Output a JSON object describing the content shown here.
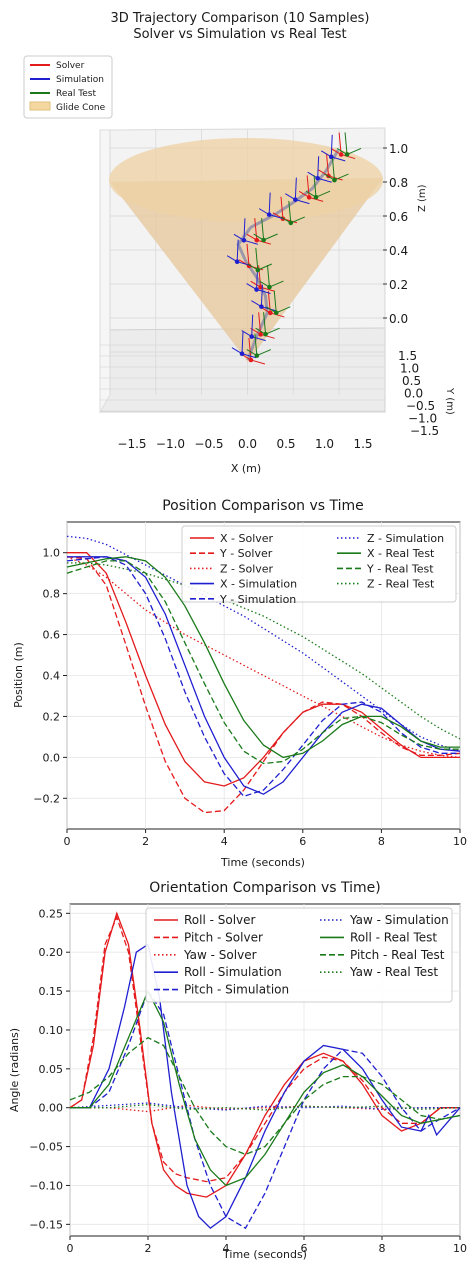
{
  "chart_data": [
    {
      "type": "scatter",
      "title": "3D Trajectory Comparison (10 Samples)",
      "subtitle": "Solver vs Simulation vs Real Test",
      "xlabel": "X (m)",
      "ylabel": "Y (m)",
      "zlabel": "Z (m)",
      "xlim": [
        -1.9,
        1.9
      ],
      "ylim": [
        -1.5,
        1.5
      ],
      "zlim": [
        -0.1,
        1.05
      ],
      "x_ticks": [
        "−1.5",
        "−1.0",
        "−0.5",
        "0.0",
        "0.5",
        "1.0",
        "1.5"
      ],
      "y_ticks": [
        "1.5",
        "1.0",
        "0.5",
        "0.0",
        "−0.5",
        "−1.0",
        "−1.5"
      ],
      "z_ticks": [
        "1.0",
        "0.8",
        "0.6",
        "0.4",
        "0.2",
        "0.0"
      ],
      "legend_position": "top-left",
      "legend": [
        {
          "label": "Solver",
          "color": "#e41a1c",
          "kind": "line"
        },
        {
          "label": "Simulation",
          "color": "#1f1fd0",
          "kind": "line"
        },
        {
          "label": "Real Test",
          "color": "#1a7a1a",
          "kind": "line"
        },
        {
          "label": "Glide Cone",
          "color": "#f5d8a0",
          "kind": "patch"
        }
      ],
      "cone_color": "#e7c79a",
      "path": {
        "x": [
          0.02,
          0.1,
          0.22,
          0.2,
          0.12,
          0.0,
          -0.08,
          0.05,
          0.3,
          0.5,
          0.68,
          0.82,
          0.95
        ],
        "z": [
          0.0,
          0.1,
          0.22,
          0.3,
          0.38,
          0.46,
          0.54,
          0.62,
          0.68,
          0.74,
          0.8,
          0.88,
          0.98
        ]
      },
      "samples": {
        "solver": {
          "x": [
            0.02,
            0.12,
            0.22,
            0.12,
            0.0,
            0.08,
            0.35,
            0.62,
            0.82,
            0.95
          ],
          "z": [
            0.0,
            0.12,
            0.22,
            0.34,
            0.44,
            0.56,
            0.66,
            0.76,
            0.86,
            0.96
          ]
        },
        "simulation": {
          "x": [
            0.0,
            0.1,
            0.2,
            0.15,
            -0.05,
            0.02,
            0.28,
            0.55,
            0.78,
            0.92
          ],
          "z": [
            0.02,
            0.1,
            0.24,
            0.32,
            0.45,
            0.55,
            0.67,
            0.74,
            0.84,
            0.94
          ]
        },
        "real": {
          "x": [
            0.05,
            0.14,
            0.25,
            0.18,
            0.06,
            0.12,
            0.4,
            0.66,
            0.85,
            0.98
          ],
          "z": [
            0.03,
            0.13,
            0.23,
            0.35,
            0.43,
            0.57,
            0.65,
            0.77,
            0.85,
            0.97
          ]
        }
      }
    },
    {
      "type": "line",
      "title": "Position Comparison vs Time",
      "xlabel": "Time (seconds)",
      "ylabel": "Position (m)",
      "xlim": [
        0,
        10
      ],
      "ylim": [
        -0.35,
        1.15
      ],
      "x_ticks": [
        0,
        2,
        4,
        6,
        8,
        10
      ],
      "y_ticks": [
        -0.2,
        0.0,
        0.2,
        0.4,
        0.6,
        0.8,
        1.0
      ],
      "grid": true,
      "legend_position": "top-right",
      "series": [
        {
          "name": "X - Solver",
          "color": "#e41a1c",
          "dash": "solid",
          "x": [
            0,
            0.5,
            1,
            1.5,
            2,
            2.5,
            3,
            3.5,
            4,
            4.5,
            5,
            5.5,
            6,
            6.5,
            7,
            7.5,
            8,
            8.5,
            9,
            9.5,
            10
          ],
          "y": [
            1.0,
            1.0,
            0.9,
            0.66,
            0.4,
            0.16,
            -0.02,
            -0.12,
            -0.14,
            -0.1,
            0.0,
            0.12,
            0.22,
            0.26,
            0.26,
            0.22,
            0.14,
            0.06,
            0.0,
            0.0,
            0.0
          ]
        },
        {
          "name": "Y - Solver",
          "color": "#e41a1c",
          "dash": "dashed",
          "x": [
            0,
            0.5,
            1,
            1.5,
            2,
            2.5,
            3,
            3.5,
            4,
            4.5,
            5,
            5.5,
            6,
            6.5,
            7,
            7.5,
            8,
            8.5,
            9,
            9.5,
            10
          ],
          "y": [
            0.98,
            0.97,
            0.84,
            0.55,
            0.25,
            -0.02,
            -0.2,
            -0.27,
            -0.26,
            -0.16,
            -0.02,
            0.12,
            0.22,
            0.27,
            0.26,
            0.2,
            0.12,
            0.05,
            0.01,
            0.01,
            0.02
          ]
        },
        {
          "name": "Z - Solver",
          "color": "#e41a1c",
          "dash": "dotted",
          "x": [
            0,
            0.5,
            1,
            1.5,
            2,
            2.5,
            3,
            3.5,
            4,
            4.5,
            5,
            5.5,
            6,
            6.5,
            7,
            7.5,
            8,
            8.5,
            9,
            9.5,
            10
          ],
          "y": [
            0.98,
            0.94,
            0.88,
            0.8,
            0.72,
            0.66,
            0.6,
            0.55,
            0.5,
            0.45,
            0.4,
            0.35,
            0.3,
            0.25,
            0.2,
            0.15,
            0.1,
            0.06,
            0.03,
            0.01,
            0.0
          ]
        },
        {
          "name": "X - Simulation",
          "color": "#1f1fd0",
          "dash": "solid",
          "x": [
            0,
            0.5,
            1,
            1.5,
            2,
            2.5,
            3,
            3.5,
            4,
            4.5,
            5,
            5.5,
            6,
            6.5,
            7,
            7.5,
            8,
            8.5,
            9,
            9.5,
            10
          ],
          "y": [
            0.98,
            0.98,
            0.98,
            0.96,
            0.88,
            0.7,
            0.45,
            0.2,
            0.0,
            -0.14,
            -0.18,
            -0.12,
            0.0,
            0.12,
            0.22,
            0.26,
            0.24,
            0.16,
            0.08,
            0.04,
            0.03
          ]
        },
        {
          "name": "Y - Simulation",
          "color": "#1f1fd0",
          "dash": "dashed",
          "x": [
            0,
            0.5,
            1,
            1.5,
            2,
            2.5,
            3,
            3.5,
            4,
            4.5,
            5,
            5.5,
            6,
            6.5,
            7,
            7.5,
            8,
            8.5,
            9,
            9.5,
            10
          ],
          "y": [
            0.96,
            0.97,
            0.98,
            0.94,
            0.8,
            0.58,
            0.32,
            0.1,
            -0.08,
            -0.19,
            -0.16,
            -0.06,
            0.06,
            0.18,
            0.26,
            0.27,
            0.22,
            0.12,
            0.05,
            0.02,
            0.02
          ]
        },
        {
          "name": "Z - Simulation",
          "color": "#1f1fd0",
          "dash": "dotted",
          "x": [
            0,
            0.5,
            1,
            1.5,
            2,
            2.5,
            3,
            3.5,
            4,
            4.5,
            5,
            5.5,
            6,
            6.5,
            7,
            7.5,
            8,
            8.5,
            9,
            9.5,
            10
          ],
          "y": [
            1.08,
            1.07,
            1.04,
            0.99,
            0.94,
            0.89,
            0.84,
            0.79,
            0.74,
            0.69,
            0.63,
            0.57,
            0.51,
            0.44,
            0.37,
            0.3,
            0.23,
            0.16,
            0.1,
            0.06,
            0.03
          ]
        },
        {
          "name": "X - Real Test",
          "color": "#1a7a1a",
          "dash": "solid",
          "x": [
            0,
            0.5,
            1,
            1.5,
            2,
            2.5,
            3,
            3.5,
            4,
            4.5,
            5,
            5.5,
            6,
            6.5,
            7,
            7.5,
            8,
            8.5,
            9,
            9.5,
            10
          ],
          "y": [
            0.93,
            0.95,
            0.97,
            0.98,
            0.96,
            0.88,
            0.74,
            0.56,
            0.36,
            0.18,
            0.06,
            0.0,
            0.02,
            0.08,
            0.16,
            0.2,
            0.2,
            0.15,
            0.08,
            0.05,
            0.05
          ]
        },
        {
          "name": "Y - Real Test",
          "color": "#1a7a1a",
          "dash": "dashed",
          "x": [
            0,
            0.5,
            1,
            1.5,
            2,
            2.5,
            3,
            3.5,
            4,
            4.5,
            5,
            5.5,
            6,
            6.5,
            7,
            7.5,
            8,
            8.5,
            9,
            9.5,
            10
          ],
          "y": [
            0.9,
            0.93,
            0.96,
            0.96,
            0.9,
            0.76,
            0.56,
            0.36,
            0.17,
            0.03,
            -0.03,
            -0.02,
            0.04,
            0.12,
            0.19,
            0.2,
            0.17,
            0.11,
            0.06,
            0.04,
            0.04
          ]
        },
        {
          "name": "Z - Real Test",
          "color": "#1a7a1a",
          "dash": "dotted",
          "x": [
            0,
            0.5,
            1,
            1.5,
            2,
            2.5,
            3,
            3.5,
            4,
            4.5,
            5,
            5.5,
            6,
            6.5,
            7,
            7.5,
            8,
            8.5,
            9,
            9.5,
            10
          ],
          "y": [
            0.95,
            0.95,
            0.94,
            0.92,
            0.9,
            0.87,
            0.84,
            0.81,
            0.77,
            0.73,
            0.69,
            0.64,
            0.59,
            0.53,
            0.47,
            0.41,
            0.34,
            0.27,
            0.2,
            0.14,
            0.09
          ]
        }
      ]
    },
    {
      "type": "line",
      "title": "Orientation Comparison vs Time)",
      "xlabel": "Time (seconds)",
      "ylabel": "Angle (radians)",
      "xlim": [
        0,
        10
      ],
      "ylim": [
        -0.165,
        0.262
      ],
      "x_ticks": [
        0,
        2,
        4,
        6,
        8,
        10
      ],
      "y_ticks": [
        -0.15,
        -0.1,
        -0.05,
        0.0,
        0.05,
        0.1,
        0.15,
        0.2,
        0.25
      ],
      "grid": true,
      "legend_position": "top-right",
      "series": [
        {
          "name": "Roll - Solver",
          "color": "#e41a1c",
          "dash": "solid",
          "x": [
            0,
            0.3,
            0.6,
            0.9,
            1.2,
            1.5,
            1.8,
            2.1,
            2.4,
            2.7,
            3.0,
            3.5,
            4,
            4.5,
            5,
            5.5,
            6,
            6.5,
            7,
            7.5,
            8,
            8.5,
            9,
            9.5,
            10
          ],
          "y": [
            0.0,
            0.01,
            0.08,
            0.2,
            0.25,
            0.21,
            0.1,
            -0.02,
            -0.08,
            -0.1,
            -0.11,
            -0.115,
            -0.1,
            -0.06,
            -0.01,
            0.03,
            0.06,
            0.07,
            0.06,
            0.03,
            -0.01,
            -0.03,
            -0.02,
            0.0,
            0.0
          ]
        },
        {
          "name": "Pitch - Solver",
          "color": "#e41a1c",
          "dash": "dashed",
          "x": [
            0,
            0.3,
            0.6,
            0.9,
            1.2,
            1.5,
            1.8,
            2.1,
            2.4,
            2.7,
            3.0,
            3.5,
            4,
            4.5,
            5,
            5.5,
            6,
            6.5,
            7,
            7.5,
            8,
            8.5,
            9,
            9.5,
            10
          ],
          "y": [
            0.0,
            0.01,
            0.09,
            0.21,
            0.245,
            0.2,
            0.09,
            -0.02,
            -0.07,
            -0.085,
            -0.09,
            -0.095,
            -0.09,
            -0.06,
            -0.02,
            0.02,
            0.05,
            0.065,
            0.06,
            0.035,
            0.0,
            -0.02,
            -0.02,
            0.0,
            0.0
          ]
        },
        {
          "name": "Yaw - Solver",
          "color": "#e41a1c",
          "dash": "dotted",
          "x": [
            0,
            1,
            2,
            3,
            4,
            5,
            6,
            7,
            8,
            9,
            10
          ],
          "y": [
            0.0,
            0.0,
            -0.005,
            0.003,
            -0.002,
            0.0,
            0.002,
            0.0,
            -0.002,
            0.0,
            0.0
          ]
        },
        {
          "name": "Roll - Simulation",
          "color": "#1f1fd0",
          "dash": "solid",
          "x": [
            0,
            0.5,
            1,
            1.4,
            1.7,
            2.0,
            2.3,
            2.6,
            3.0,
            3.3,
            3.6,
            4,
            4.5,
            5,
            5.5,
            6,
            6.5,
            7,
            7.5,
            8,
            8.5,
            9,
            9.2,
            9.4,
            10
          ],
          "y": [
            0.0,
            0.0,
            0.05,
            0.13,
            0.2,
            0.21,
            0.14,
            0.02,
            -0.1,
            -0.14,
            -0.155,
            -0.14,
            -0.09,
            -0.03,
            0.02,
            0.06,
            0.08,
            0.075,
            0.05,
            0.01,
            -0.025,
            -0.03,
            -0.01,
            -0.035,
            0.0
          ]
        },
        {
          "name": "Pitch - Simulation",
          "color": "#1f1fd0",
          "dash": "dashed",
          "x": [
            0,
            0.5,
            1,
            1.5,
            2.0,
            2.4,
            2.8,
            3.2,
            3.6,
            4.0,
            4.5,
            5,
            5.5,
            6,
            6.5,
            7,
            7.5,
            8,
            8.5,
            9,
            9.3,
            10
          ],
          "y": [
            0.0,
            0.0,
            0.02,
            0.08,
            0.15,
            0.12,
            0.04,
            -0.04,
            -0.1,
            -0.14,
            -0.155,
            -0.11,
            -0.05,
            0.01,
            0.05,
            0.075,
            0.07,
            0.04,
            0.0,
            -0.03,
            -0.02,
            0.0
          ]
        },
        {
          "name": "Yaw - Simulation",
          "color": "#1f1fd0",
          "dash": "dotted",
          "x": [
            0,
            1,
            2,
            3,
            4,
            5,
            6,
            7,
            8,
            9,
            10
          ],
          "y": [
            0.0,
            0.003,
            0.006,
            0.0,
            -0.003,
            0.002,
            0.0,
            0.002,
            -0.002,
            0.0,
            0.0
          ]
        },
        {
          "name": "Roll - Real Test",
          "color": "#1a7a1a",
          "dash": "solid",
          "x": [
            0,
            0.5,
            1,
            1.5,
            2.0,
            2.4,
            2.8,
            3.2,
            3.6,
            4.0,
            4.5,
            5,
            5.5,
            6,
            6.5,
            7,
            7.5,
            8,
            8.5,
            9,
            9.5,
            10
          ],
          "y": [
            0.0,
            0.0,
            0.03,
            0.09,
            0.15,
            0.11,
            0.03,
            -0.04,
            -0.08,
            -0.1,
            -0.09,
            -0.06,
            -0.02,
            0.02,
            0.045,
            0.055,
            0.04,
            0.015,
            -0.01,
            -0.02,
            -0.015,
            -0.01
          ]
        },
        {
          "name": "Pitch - Real Test",
          "color": "#1a7a1a",
          "dash": "dashed",
          "x": [
            0,
            0.5,
            1,
            1.5,
            2.0,
            2.4,
            2.8,
            3.2,
            3.6,
            4.0,
            4.5,
            5,
            5.5,
            6,
            6.5,
            7,
            7.5,
            8,
            8.5,
            9,
            9.5,
            10
          ],
          "y": [
            0.01,
            0.02,
            0.04,
            0.07,
            0.09,
            0.08,
            0.04,
            0.0,
            -0.03,
            -0.05,
            -0.06,
            -0.05,
            -0.02,
            0.01,
            0.03,
            0.04,
            0.04,
            0.03,
            0.01,
            -0.01,
            -0.015,
            -0.01
          ]
        },
        {
          "name": "Yaw - Real Test",
          "color": "#1a7a1a",
          "dash": "dotted",
          "x": [
            0,
            1,
            2,
            3,
            4,
            5,
            6,
            7,
            8,
            9,
            10
          ],
          "y": [
            0.0,
            0.0,
            0.004,
            -0.002,
            0.0,
            -0.003,
            0.002,
            0.0,
            0.002,
            -0.002,
            0.0
          ]
        }
      ]
    }
  ]
}
